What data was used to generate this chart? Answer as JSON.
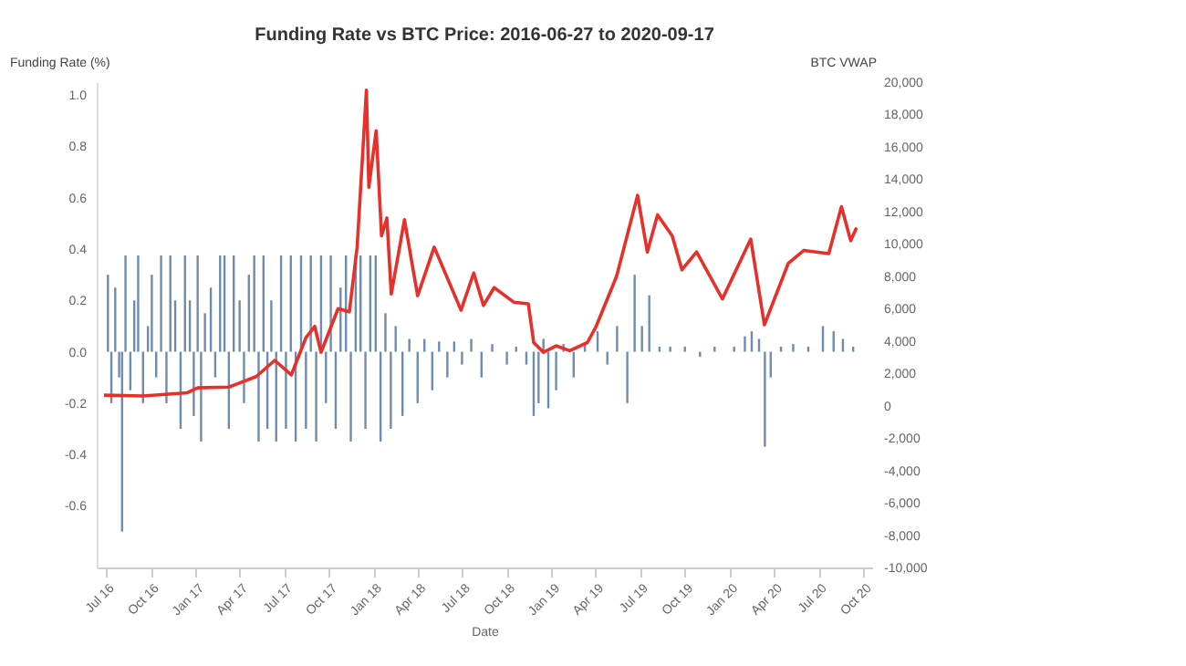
{
  "chart_data": {
    "type": "bar",
    "title": "Funding Rate vs BTC Price: 2016-06-27 to 2020-09-17",
    "xlabel": "Date",
    "ylabel": "Funding Rate (%)",
    "y2label": "BTC VWAP",
    "xlim": [
      "2016-06-12",
      "2020-10-19"
    ],
    "xticks": [
      {
        "value": "2016-07-01",
        "label": "Jul 16"
      },
      {
        "value": "2016-10-01",
        "label": "Oct 16"
      },
      {
        "value": "2017-01-01",
        "label": "Jan 17"
      },
      {
        "value": "2017-04-01",
        "label": "Apr 17"
      },
      {
        "value": "2017-07-01",
        "label": "Jul 17"
      },
      {
        "value": "2017-10-01",
        "label": "Oct 17"
      },
      {
        "value": "2018-01-01",
        "label": "Jan 18"
      },
      {
        "value": "2018-04-01",
        "label": "Apr 18"
      },
      {
        "value": "2018-07-01",
        "label": "Jul 18"
      },
      {
        "value": "2018-10-01",
        "label": "Oct 18"
      },
      {
        "value": "2019-01-01",
        "label": "Jan 19"
      },
      {
        "value": "2019-04-01",
        "label": "Apr 19"
      },
      {
        "value": "2019-07-01",
        "label": "Jul 19"
      },
      {
        "value": "2019-10-01",
        "label": "Oct 19"
      },
      {
        "value": "2020-01-01",
        "label": "Jan 20"
      },
      {
        "value": "2020-04-01",
        "label": "Apr 20"
      },
      {
        "value": "2020-07-01",
        "label": "Jul 20"
      },
      {
        "value": "2020-10-01",
        "label": "Oct 20"
      }
    ],
    "ylim": [
      -0.84,
      1.05
    ],
    "yticks": [
      {
        "value": -0.6,
        "label": "-0.6"
      },
      {
        "value": -0.4,
        "label": "-0.4"
      },
      {
        "value": -0.2,
        "label": "-0.2"
      },
      {
        "value": 0,
        "label": "0.0"
      },
      {
        "value": 0.2,
        "label": "0.2"
      },
      {
        "value": 0.4,
        "label": "0.4"
      },
      {
        "value": 0.6,
        "label": "0.6"
      },
      {
        "value": 0.8,
        "label": "0.8"
      },
      {
        "value": 1,
        "label": "1.0"
      }
    ],
    "y2lim": [
      -10000,
      20000
    ],
    "y2ticks": [
      {
        "value": -10000,
        "label": "-10,000"
      },
      {
        "value": -8000,
        "label": "-8,000"
      },
      {
        "value": -6000,
        "label": "-6,000"
      },
      {
        "value": -4000,
        "label": "-4,000"
      },
      {
        "value": -2000,
        "label": "-2,000"
      },
      {
        "value": 0,
        "label": "0"
      },
      {
        "value": 2000,
        "label": "2,000"
      },
      {
        "value": 4000,
        "label": "4,000"
      },
      {
        "value": 6000,
        "label": "6,000"
      },
      {
        "value": 8000,
        "label": "8,000"
      },
      {
        "value": 10000,
        "label": "10,000"
      },
      {
        "value": 12000,
        "label": "12,000"
      },
      {
        "value": 14000,
        "label": "14,000"
      },
      {
        "value": 16000,
        "label": "16,000"
      },
      {
        "value": 18000,
        "label": "18,000"
      },
      {
        "value": 20000,
        "label": "20,000"
      }
    ],
    "grid": false,
    "legend": false,
    "series": [
      {
        "color": "#3d6596",
        "x": [
          "2016-07-05",
          "2016-07-12",
          "2016-07-20",
          "2016-07-28",
          "2016-08-03",
          "2016-08-10",
          "2016-08-20",
          "2016-08-28",
          "2016-09-05",
          "2016-09-15",
          "2016-09-25",
          "2016-10-03",
          "2016-10-12",
          "2016-10-22",
          "2016-11-02",
          "2016-11-10",
          "2016-11-20",
          "2016-12-01",
          "2016-12-10",
          "2016-12-20",
          "2016-12-28",
          "2017-01-05",
          "2017-01-12",
          "2017-01-20",
          "2017-02-01",
          "2017-02-10",
          "2017-02-20",
          "2017-03-01",
          "2017-03-10",
          "2017-03-20",
          "2017-04-01",
          "2017-04-10",
          "2017-04-20",
          "2017-05-01",
          "2017-05-10",
          "2017-05-20",
          "2017-05-28",
          "2017-06-05",
          "2017-06-15",
          "2017-06-25",
          "2017-07-05",
          "2017-07-15",
          "2017-07-25",
          "2017-08-05",
          "2017-08-15",
          "2017-08-25",
          "2017-09-05",
          "2017-09-15",
          "2017-09-25",
          "2017-10-05",
          "2017-10-15",
          "2017-10-25",
          "2017-11-05",
          "2017-11-15",
          "2017-11-25",
          "2017-12-05",
          "2017-12-15",
          "2017-12-25",
          "2018-01-05",
          "2018-01-15",
          "2018-01-25",
          "2018-02-05",
          "2018-02-15",
          "2018-03-01",
          "2018-03-15",
          "2018-04-01",
          "2018-04-15",
          "2018-05-01",
          "2018-05-15",
          "2018-06-01",
          "2018-06-15",
          "2018-07-01",
          "2018-07-20",
          "2018-08-10",
          "2018-09-01",
          "2018-10-01",
          "2018-10-20",
          "2018-11-10",
          "2018-11-25",
          "2018-12-05",
          "2018-12-15",
          "2018-12-25",
          "2019-01-10",
          "2019-01-25",
          "2019-02-15",
          "2019-03-10",
          "2019-04-05",
          "2019-04-25",
          "2019-05-15",
          "2019-06-05",
          "2019-06-20",
          "2019-07-05",
          "2019-07-20",
          "2019-08-10",
          "2019-09-01",
          "2019-10-01",
          "2019-11-01",
          "2019-12-01",
          "2020-01-10",
          "2020-02-01",
          "2020-02-15",
          "2020-03-01",
          "2020-03-13",
          "2020-03-25",
          "2020-04-15",
          "2020-05-10",
          "2020-06-10",
          "2020-07-10",
          "2020-08-01",
          "2020-08-20",
          "2020-09-10"
        ],
        "values": [
          0.3,
          -0.2,
          0.25,
          -0.1,
          -0.7,
          0.375,
          -0.15,
          0.2,
          0.375,
          -0.2,
          0.1,
          0.3,
          -0.1,
          0.375,
          -0.2,
          0.375,
          0.2,
          -0.3,
          0.375,
          0.2,
          -0.25,
          0.375,
          -0.35,
          0.15,
          0.25,
          -0.1,
          0.375,
          0.375,
          -0.3,
          0.375,
          0.2,
          -0.2,
          0.3,
          0.375,
          -0.35,
          0.375,
          -0.3,
          0.2,
          -0.35,
          0.375,
          -0.3,
          0.375,
          -0.35,
          0.375,
          -0.3,
          0.375,
          -0.35,
          0.375,
          -0.2,
          0.375,
          -0.3,
          0.25,
          0.375,
          -0.35,
          0.375,
          0.375,
          -0.3,
          0.375,
          0.375,
          -0.35,
          0.15,
          -0.3,
          0.1,
          -0.25,
          0.05,
          -0.2,
          0.05,
          -0.15,
          0.04,
          -0.1,
          0.04,
          -0.05,
          0.05,
          -0.1,
          0.03,
          -0.05,
          0.02,
          -0.05,
          -0.25,
          -0.2,
          0.05,
          -0.22,
          -0.15,
          0.03,
          -0.1,
          0.03,
          0.08,
          -0.05,
          0.1,
          -0.2,
          0.3,
          0.1,
          0.22,
          0.02,
          0.02,
          0.02,
          -0.02,
          0.02,
          0.02,
          0.06,
          0.08,
          0.05,
          -0.37,
          -0.1,
          0.02,
          0.03,
          0.02,
          0.1,
          0.08,
          0.05,
          0.02
        ]
      },
      {
        "type": "line",
        "axis": "y2",
        "color": "#e8302a",
        "x": [
          "2016-06-27",
          "2016-09-15",
          "2016-12-15",
          "2017-01-05",
          "2017-03-10",
          "2017-05-05",
          "2017-06-12",
          "2017-07-16",
          "2017-08-15",
          "2017-09-02",
          "2017-09-15",
          "2017-10-20",
          "2017-11-12",
          "2017-11-28",
          "2017-12-17",
          "2017-12-22",
          "2018-01-06",
          "2018-01-17",
          "2018-01-28",
          "2018-02-06",
          "2018-03-05",
          "2018-04-01",
          "2018-05-05",
          "2018-06-29",
          "2018-07-25",
          "2018-08-14",
          "2018-09-05",
          "2018-10-15",
          "2018-11-14",
          "2018-11-25",
          "2018-12-15",
          "2019-01-10",
          "2019-02-07",
          "2019-03-15",
          "2019-04-02",
          "2019-05-14",
          "2019-06-26",
          "2019-07-16",
          "2019-08-06",
          "2019-09-05",
          "2019-09-25",
          "2019-10-25",
          "2019-12-17",
          "2020-02-13",
          "2020-03-12",
          "2020-04-30",
          "2020-06-01",
          "2020-07-22",
          "2020-08-17",
          "2020-09-05",
          "2020-09-17"
        ],
        "values": [
          650,
          600,
          800,
          1100,
          1150,
          1800,
          2800,
          1900,
          4200,
          4900,
          3300,
          6000,
          5800,
          9800,
          19500,
          13500,
          17000,
          10500,
          11600,
          6900,
          11500,
          6800,
          9800,
          5900,
          8200,
          6200,
          7300,
          6400,
          6300,
          3900,
          3300,
          3700,
          3400,
          3900,
          4900,
          8000,
          13000,
          9500,
          11800,
          10500,
          8400,
          9500,
          6600,
          10300,
          5000,
          8800,
          9600,
          9400,
          12300,
          10200,
          11000
        ]
      }
    ]
  }
}
